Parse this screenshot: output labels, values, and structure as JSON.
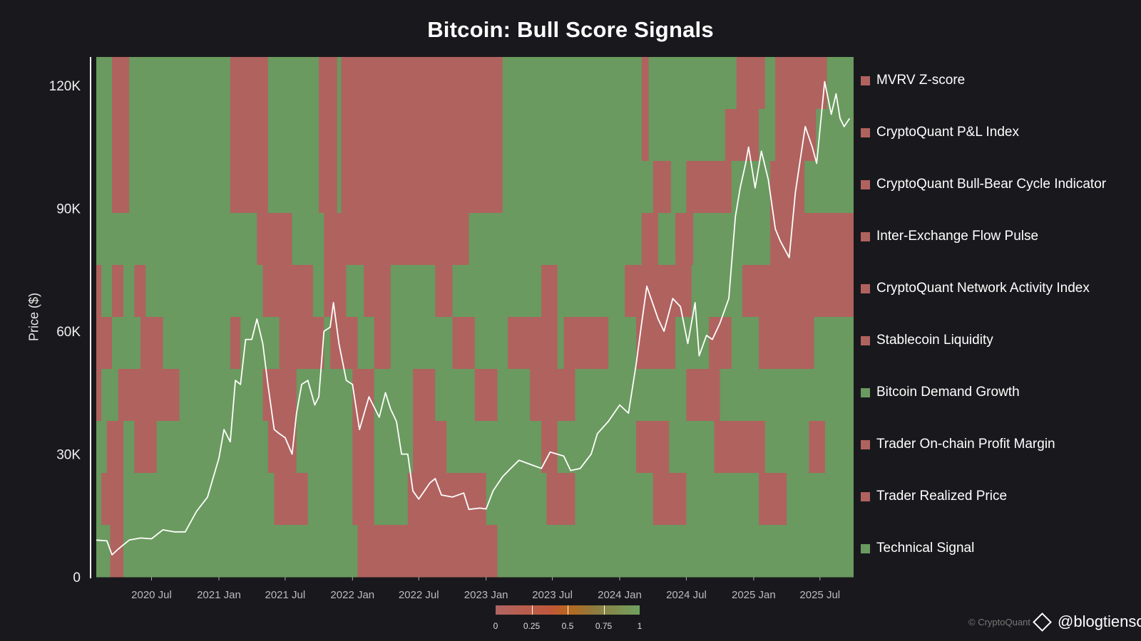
{
  "chart_data": {
    "type": "heatmap",
    "title": "Bitcoin: Bull Score Signals",
    "xlabel": "",
    "ylabel": "Price ($)",
    "ylim": [
      0,
      127000
    ],
    "ytick_values": [
      0,
      30000,
      60000,
      90000,
      120000
    ],
    "ytick_labels": [
      "0",
      "30K",
      "60K",
      "90K",
      "120K"
    ],
    "xlim": [
      "2020-02-01",
      "2025-10-01"
    ],
    "xtick_values": [
      "2020-07-01",
      "2021-01-01",
      "2021-07-01",
      "2022-01-01",
      "2022-07-01",
      "2023-01-01",
      "2023-07-01",
      "2024-01-01",
      "2024-07-01",
      "2025-01-01",
      "2025-07-01"
    ],
    "xtick_labels": [
      "2020 Jul",
      "2021 Jan",
      "2021 Jul",
      "2022 Jan",
      "2022 Jul",
      "2023 Jan",
      "2023 Jul",
      "2024 Jan",
      "2024 Jul",
      "2025 Jan",
      "2025 Jul"
    ],
    "colors": {
      "bull": "#6a9a5f",
      "bear": "#b0625f",
      "price_line": "#ffffff",
      "background": "#19191d"
    },
    "legend_position": "right",
    "legend": [
      {
        "label": "MVRV Z-score",
        "color": "#b0625f"
      },
      {
        "label": "CryptoQuant P&L Index",
        "color": "#b0625f"
      },
      {
        "label": "CryptoQuant Bull-Bear Cycle Indicator",
        "color": "#b0625f"
      },
      {
        "label": "Inter-Exchange Flow Pulse",
        "color": "#b0625f"
      },
      {
        "label": "CryptoQuant Network Activity Index",
        "color": "#b0625f"
      },
      {
        "label": "Stablecoin Liquidity",
        "color": "#b0625f"
      },
      {
        "label": "Bitcoin Demand Growth",
        "color": "#6a9a5f"
      },
      {
        "label": "Trader On-chain Profit Margin",
        "color": "#b0625f"
      },
      {
        "label": "Trader Realized Price",
        "color": "#b0625f"
      },
      {
        "label": "Technical Signal",
        "color": "#6a9a5f"
      }
    ],
    "colorbar": {
      "ticks": [
        "0",
        "0.25",
        "0.5",
        "0.75",
        "1"
      ],
      "tick_values": [
        0,
        0.25,
        0.5,
        0.75,
        1
      ]
    },
    "signal_rows": [
      {
        "name": "MVRV Z-score",
        "bearish_periods": [
          [
            "2020-03-15",
            "2020-05-01"
          ],
          [
            "2021-02-01",
            "2021-05-15"
          ],
          [
            "2021-10-01",
            "2021-11-20"
          ],
          [
            "2021-12-01",
            "2023-02-15"
          ],
          [
            "2024-03-01",
            "2024-03-20"
          ],
          [
            "2024-11-15",
            "2025-02-01"
          ],
          [
            "2025-03-01",
            "2025-07-20"
          ]
        ]
      },
      {
        "name": "CryptoQuant P&L Index",
        "bearish_periods": [
          [
            "2020-03-15",
            "2020-05-01"
          ],
          [
            "2021-02-01",
            "2021-05-15"
          ],
          [
            "2021-10-01",
            "2021-11-20"
          ],
          [
            "2021-12-01",
            "2023-02-15"
          ],
          [
            "2024-03-01",
            "2024-03-20"
          ],
          [
            "2024-10-15",
            "2025-01-15"
          ],
          [
            "2025-03-01",
            "2025-06-20"
          ]
        ]
      },
      {
        "name": "CryptoQuant Bull-Bear Cycle Indicator",
        "bearish_periods": [
          [
            "2020-03-15",
            "2020-05-01"
          ],
          [
            "2021-02-01",
            "2021-05-15"
          ],
          [
            "2021-10-01",
            "2021-11-20"
          ],
          [
            "2021-12-01",
            "2023-02-15"
          ],
          [
            "2024-04-01",
            "2024-05-20"
          ],
          [
            "2024-07-01",
            "2024-11-01"
          ],
          [
            "2025-02-15",
            "2025-05-20"
          ]
        ]
      },
      {
        "name": "Inter-Exchange Flow Pulse",
        "bearish_periods": [
          [
            "2021-04-15",
            "2021-07-20"
          ],
          [
            "2021-10-15",
            "2022-11-15"
          ],
          [
            "2024-03-01",
            "2024-04-15"
          ],
          [
            "2024-06-01",
            "2024-07-20"
          ],
          [
            "2025-02-15",
            "2025-04-15"
          ],
          [
            "2025-04-15",
            "2025-10-01"
          ]
        ]
      },
      {
        "name": "CryptoQuant Network Activity Index",
        "bearish_periods": [
          [
            "2020-02-01",
            "2020-02-15"
          ],
          [
            "2020-03-15",
            "2020-04-15"
          ],
          [
            "2020-05-15",
            "2020-06-15"
          ],
          [
            "2021-05-01",
            "2021-09-15"
          ],
          [
            "2021-10-15",
            "2021-12-15"
          ],
          [
            "2022-02-01",
            "2022-04-15"
          ],
          [
            "2022-08-15",
            "2022-10-01"
          ],
          [
            "2023-06-01",
            "2023-07-15"
          ],
          [
            "2024-01-15",
            "2024-07-15"
          ],
          [
            "2024-12-01",
            "2025-03-15"
          ],
          [
            "2025-03-15",
            "2025-10-01"
          ]
        ]
      },
      {
        "name": "Stablecoin Liquidity",
        "bearish_periods": [
          [
            "2020-02-01",
            "2020-03-15"
          ],
          [
            "2020-06-01",
            "2020-08-01"
          ],
          [
            "2021-02-01",
            "2021-03-01"
          ],
          [
            "2021-06-15",
            "2021-10-15"
          ],
          [
            "2021-11-01",
            "2022-01-15"
          ],
          [
            "2022-03-01",
            "2022-04-15"
          ],
          [
            "2022-10-01",
            "2022-12-01"
          ],
          [
            "2023-03-01",
            "2023-07-15"
          ],
          [
            "2023-08-01",
            "2023-12-01"
          ],
          [
            "2024-02-15",
            "2024-06-01"
          ],
          [
            "2024-09-01",
            "2024-11-01"
          ],
          [
            "2025-01-15",
            "2025-06-15"
          ]
        ]
      },
      {
        "name": "Bitcoin Demand Growth",
        "bearish_periods": [
          [
            "2020-02-01",
            "2020-02-15"
          ],
          [
            "2020-04-01",
            "2020-09-15"
          ],
          [
            "2021-05-01",
            "2021-08-01"
          ],
          [
            "2022-01-01",
            "2022-03-01"
          ],
          [
            "2022-06-15",
            "2022-08-15"
          ],
          [
            "2022-12-01",
            "2023-02-01"
          ],
          [
            "2023-05-01",
            "2023-09-01"
          ],
          [
            "2024-07-01",
            "2024-10-01"
          ]
        ]
      },
      {
        "name": "Trader On-chain Profit Margin",
        "bearish_periods": [
          [
            "2020-03-01",
            "2020-04-15"
          ],
          [
            "2020-05-15",
            "2020-07-15"
          ],
          [
            "2021-05-15",
            "2021-08-01"
          ],
          [
            "2022-01-01",
            "2022-03-01"
          ],
          [
            "2022-06-15",
            "2022-09-15"
          ],
          [
            "2023-06-01",
            "2023-07-15"
          ],
          [
            "2024-02-15",
            "2024-05-15"
          ],
          [
            "2024-09-15",
            "2025-02-01"
          ],
          [
            "2025-06-01",
            "2025-07-15"
          ]
        ]
      },
      {
        "name": "Trader Realized Price",
        "bearish_periods": [
          [
            "2020-02-15",
            "2020-04-15"
          ],
          [
            "2021-06-01",
            "2021-09-01"
          ],
          [
            "2022-01-01",
            "2022-03-01"
          ],
          [
            "2022-06-01",
            "2023-01-01"
          ],
          [
            "2023-06-15",
            "2023-09-01"
          ],
          [
            "2024-04-01",
            "2024-07-01"
          ],
          [
            "2025-01-15",
            "2025-04-01"
          ]
        ]
      },
      {
        "name": "Technical Signal",
        "bearish_periods": [
          [
            "2020-03-10",
            "2020-04-15"
          ],
          [
            "2022-01-15",
            "2023-02-01"
          ]
        ]
      }
    ],
    "price_series": {
      "name": "Bitcoin price",
      "dates": [
        "2020-02-01",
        "2020-03-01",
        "2020-03-15",
        "2020-04-01",
        "2020-05-01",
        "2020-06-01",
        "2020-07-01",
        "2020-08-01",
        "2020-09-01",
        "2020-10-01",
        "2020-11-01",
        "2020-12-01",
        "2021-01-01",
        "2021-01-15",
        "2021-02-01",
        "2021-02-15",
        "2021-03-01",
        "2021-03-15",
        "2021-04-01",
        "2021-04-15",
        "2021-05-01",
        "2021-05-15",
        "2021-06-01",
        "2021-06-15",
        "2021-07-01",
        "2021-07-20",
        "2021-08-01",
        "2021-08-15",
        "2021-09-01",
        "2021-09-20",
        "2021-10-01",
        "2021-10-15",
        "2021-11-01",
        "2021-11-10",
        "2021-11-25",
        "2021-12-15",
        "2022-01-01",
        "2022-01-20",
        "2022-02-15",
        "2022-03-15",
        "2022-04-01",
        "2022-04-15",
        "2022-05-01",
        "2022-05-15",
        "2022-06-01",
        "2022-06-15",
        "2022-07-01",
        "2022-08-01",
        "2022-08-15",
        "2022-09-01",
        "2022-10-01",
        "2022-11-01",
        "2022-11-15",
        "2022-12-15",
        "2023-01-01",
        "2023-01-20",
        "2023-02-15",
        "2023-03-15",
        "2023-04-01",
        "2023-05-01",
        "2023-06-01",
        "2023-06-25",
        "2023-08-01",
        "2023-08-20",
        "2023-09-15",
        "2023-10-15",
        "2023-11-01",
        "2023-12-01",
        "2024-01-01",
        "2024-01-25",
        "2024-02-15",
        "2024-03-01",
        "2024-03-15",
        "2024-04-15",
        "2024-05-01",
        "2024-05-25",
        "2024-06-15",
        "2024-07-05",
        "2024-07-25",
        "2024-08-05",
        "2024-08-25",
        "2024-09-10",
        "2024-10-01",
        "2024-10-25",
        "2024-11-12",
        "2024-11-25",
        "2024-12-10",
        "2024-12-18",
        "2025-01-05",
        "2025-01-22",
        "2025-02-10",
        "2025-03-01",
        "2025-03-15",
        "2025-04-08",
        "2025-04-25",
        "2025-05-10",
        "2025-05-22",
        "2025-06-10",
        "2025-06-22",
        "2025-07-14",
        "2025-08-01",
        "2025-08-14",
        "2025-08-25",
        "2025-09-05",
        "2025-09-20"
      ],
      "values": [
        9000,
        8800,
        5400,
        6800,
        9000,
        9500,
        9300,
        11500,
        11000,
        11000,
        16000,
        19500,
        29000,
        36000,
        33000,
        48000,
        47000,
        58000,
        58000,
        63000,
        57000,
        47000,
        36000,
        35000,
        34000,
        30000,
        40000,
        47000,
        48000,
        42000,
        44000,
        60000,
        61000,
        67000,
        57000,
        48000,
        47000,
        36000,
        44000,
        39000,
        45000,
        41000,
        38000,
        30000,
        30000,
        21000,
        19000,
        23000,
        24000,
        20000,
        19500,
        20500,
        16500,
        16800,
        16600,
        21000,
        24500,
        27000,
        28500,
        27500,
        26500,
        30500,
        29500,
        26000,
        26500,
        30000,
        35000,
        38000,
        42000,
        40000,
        52000,
        62000,
        71000,
        63000,
        60000,
        68000,
        66000,
        57000,
        67000,
        54000,
        59000,
        58000,
        62000,
        68000,
        88000,
        95000,
        101000,
        105000,
        95000,
        104000,
        97000,
        85000,
        82000,
        78000,
        94000,
        103000,
        110000,
        105000,
        101000,
        121000,
        113000,
        118000,
        112000,
        110000,
        112000
      ]
    }
  }
}
